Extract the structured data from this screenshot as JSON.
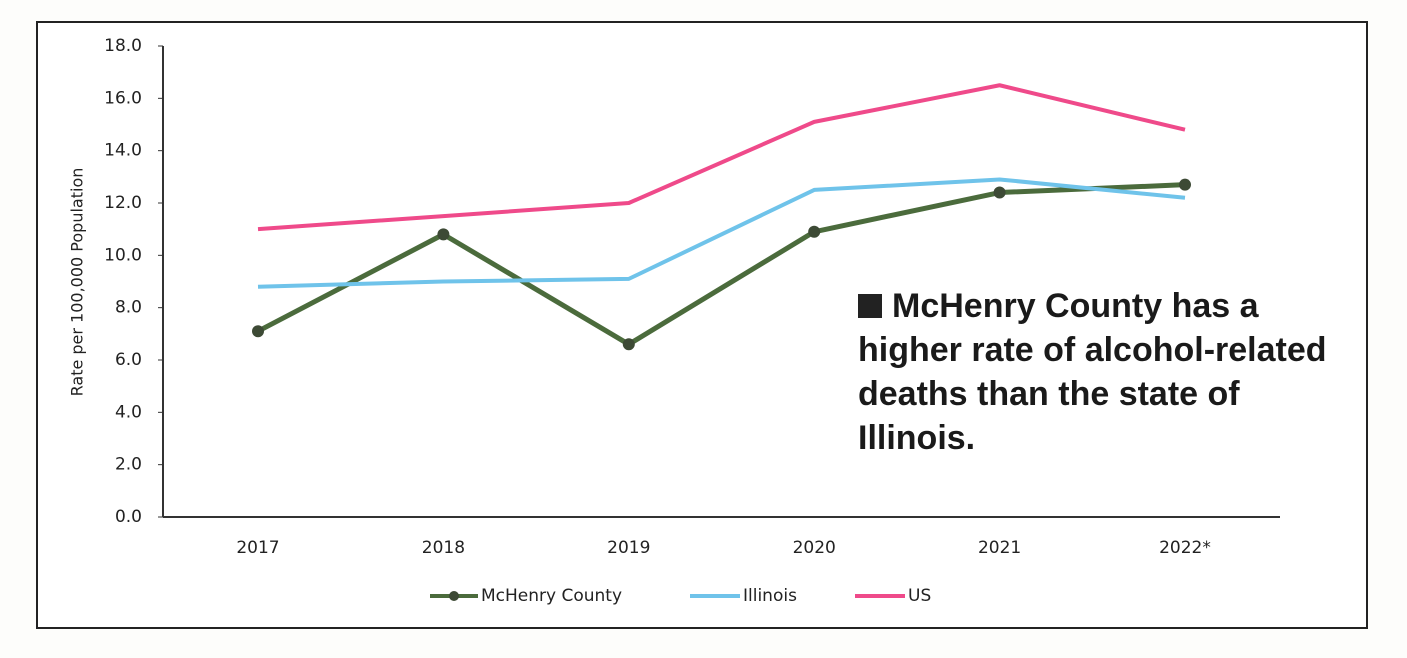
{
  "chart_data": {
    "type": "line",
    "y_label": "Rate per 100,000 Population",
    "annotation": "McHenry County has a higher rate of alcohol-related deaths than the state of Illinois.",
    "categories": [
      "2017",
      "2018",
      "2019",
      "2020",
      "2021",
      "2022*"
    ],
    "series": [
      {
        "name": "McHenry County",
        "color": "#4b6b3c",
        "marker": "circle",
        "values": [
          7.1,
          10.8,
          6.6,
          10.9,
          12.4,
          12.7
        ]
      },
      {
        "name": "Illinois",
        "color": "#6fc3ea",
        "values": [
          8.8,
          9.0,
          9.1,
          12.5,
          12.9,
          12.2
        ]
      },
      {
        "name": "US",
        "color": "#ef4a8a",
        "values": [
          11.0,
          11.5,
          12.0,
          15.1,
          16.5,
          14.8
        ]
      }
    ],
    "ylim": [
      0,
      18
    ],
    "yticks": [
      {
        "value": 0,
        "label": "0.0"
      },
      {
        "value": 2,
        "label": "2.0"
      },
      {
        "value": 4,
        "label": "4.0"
      },
      {
        "value": 6,
        "label": "6.0"
      },
      {
        "value": 8,
        "label": "8.0"
      },
      {
        "value": 10,
        "label": "10.0"
      },
      {
        "value": 12,
        "label": "12.0"
      },
      {
        "value": 14,
        "label": "14.0"
      },
      {
        "value": 16,
        "label": "16.0"
      },
      {
        "value": 18,
        "label": "18.0"
      }
    ],
    "legend": "bottom"
  }
}
